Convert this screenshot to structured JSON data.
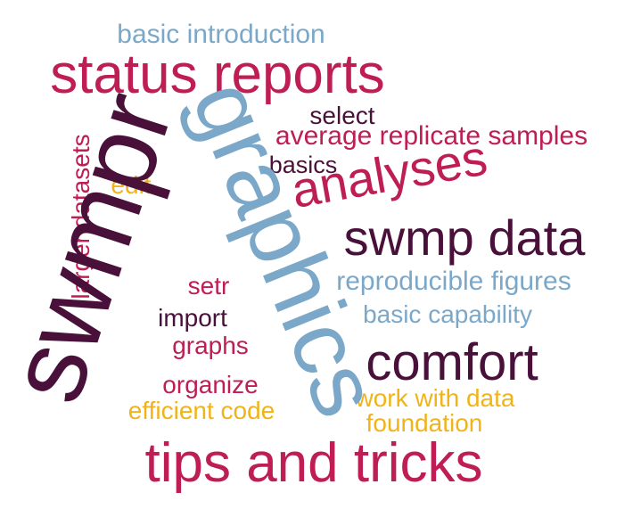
{
  "palette": {
    "crimson": "#be1e53",
    "plum": "#49103a",
    "steel-blue": "#7ba8c9",
    "gold": "#f0b41a"
  },
  "words": [
    {
      "text": "basic introduction",
      "color": "steel-blue",
      "rotated": false
    },
    {
      "text": "status reports",
      "color": "crimson",
      "rotated": false
    },
    {
      "text": "select",
      "color": "plum",
      "rotated": false
    },
    {
      "text": "average replicate samples",
      "color": "crimson",
      "rotated": false
    },
    {
      "text": "basics",
      "color": "plum",
      "rotated": false
    },
    {
      "text": "analyses",
      "color": "crimson",
      "rotated": false
    },
    {
      "text": "edit",
      "color": "gold",
      "rotated": false
    },
    {
      "text": "swmp data",
      "color": "plum",
      "rotated": false
    },
    {
      "text": "larger datasets",
      "color": "crimson",
      "rotated": true
    },
    {
      "text": "reproducible figures",
      "color": "steel-blue",
      "rotated": false
    },
    {
      "text": "setr",
      "color": "crimson",
      "rotated": false
    },
    {
      "text": "import",
      "color": "plum",
      "rotated": false
    },
    {
      "text": "basic capability",
      "color": "steel-blue",
      "rotated": false
    },
    {
      "text": "graphs",
      "color": "crimson",
      "rotated": false
    },
    {
      "text": "comfort",
      "color": "plum",
      "rotated": false
    },
    {
      "text": "organize",
      "color": "crimson",
      "rotated": false
    },
    {
      "text": "work with data",
      "color": "gold",
      "rotated": false
    },
    {
      "text": "efficient code",
      "color": "gold",
      "rotated": false
    },
    {
      "text": "foundation",
      "color": "gold",
      "rotated": false
    },
    {
      "text": "tips and tricks",
      "color": "crimson",
      "rotated": false
    },
    {
      "text": "swmpr",
      "color": "plum",
      "rotated": true
    },
    {
      "text": "graphics",
      "color": "steel-blue",
      "rotated": true
    }
  ]
}
